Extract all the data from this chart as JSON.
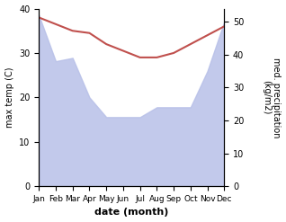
{
  "months": [
    "Jan",
    "Feb",
    "Mar",
    "Apr",
    "May",
    "Jun",
    "Jul",
    "Aug",
    "Sep",
    "Oct",
    "Nov",
    "Dec"
  ],
  "x": [
    0,
    1,
    2,
    3,
    4,
    5,
    6,
    7,
    8,
    9,
    10,
    11
  ],
  "temperature": [
    38,
    36.5,
    35,
    34.5,
    32,
    30.5,
    29,
    29,
    30,
    32,
    34,
    36
  ],
  "precipitation": [
    52,
    38,
    39,
    27,
    21,
    21,
    21,
    24,
    24,
    24,
    35,
    50
  ],
  "temp_color": "#c0504d",
  "precip_fill_color": "#b8c0e8",
  "temp_ylim": [
    0,
    40
  ],
  "precip_ylim": [
    0,
    54
  ],
  "temp_yticks": [
    0,
    10,
    20,
    30,
    40
  ],
  "precip_yticks": [
    0,
    10,
    20,
    30,
    40,
    50
  ],
  "xlabel": "date (month)",
  "ylabel_left": "max temp (C)",
  "ylabel_right": "med. precipitation\n(kg/m2)",
  "background_color": "#ffffff"
}
